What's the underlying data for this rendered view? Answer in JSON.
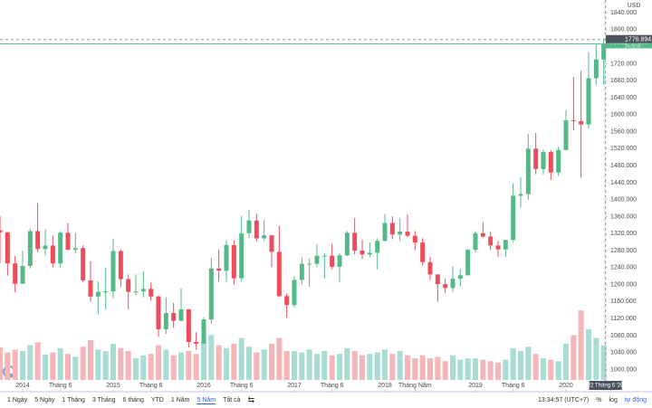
{
  "chart_data": {
    "type": "candlestick",
    "currency": "USD",
    "symbol": "XAUUSD",
    "up_color": "#53b987",
    "down_color": "#eb4d5c",
    "volume_up_color": "#a9dcd3",
    "volume_down_color": "#f5b5b9",
    "ylim": [
      950,
      1870
    ],
    "volume_lim": [
      0,
      100
    ],
    "yticks": [
      {
        "value": 1000,
        "label": "1000.000"
      },
      {
        "value": 1040,
        "label": "1040.000"
      },
      {
        "value": 1080,
        "label": "1080.000"
      },
      {
        "value": 1120,
        "label": "1120.000"
      },
      {
        "value": 1160,
        "label": "1160.000"
      },
      {
        "value": 1200,
        "label": "1200.000"
      },
      {
        "value": 1240,
        "label": "1240.000"
      },
      {
        "value": 1280,
        "label": "1280.000"
      },
      {
        "value": 1320,
        "label": "1320.000"
      },
      {
        "value": 1360,
        "label": "1360.000"
      },
      {
        "value": 1400,
        "label": "1400.000"
      },
      {
        "value": 1440,
        "label": "1440.000"
      },
      {
        "value": 1480,
        "label": "1480.000"
      },
      {
        "value": 1520,
        "label": "1520.000"
      },
      {
        "value": 1560,
        "label": "1560.000"
      },
      {
        "value": 1600,
        "label": "1600.000"
      },
      {
        "value": 1640,
        "label": "1640.000"
      },
      {
        "value": 1680,
        "label": "1680.000"
      },
      {
        "value": 1720,
        "label": "1720.000"
      },
      {
        "value": 1760,
        "label": "1760.000"
      },
      {
        "value": 1800,
        "label": "1800.000"
      },
      {
        "value": 1840,
        "label": "1840.000"
      }
    ],
    "xticks": [
      {
        "value": "2014-01",
        "label": "2014"
      },
      {
        "value": "2014-06",
        "label": "Tháng 6"
      },
      {
        "value": "2015-01",
        "label": "2015"
      },
      {
        "value": "2015-06",
        "label": "Tháng 6"
      },
      {
        "value": "2016-01",
        "label": "2016"
      },
      {
        "value": "2016-06",
        "label": "Tháng 6"
      },
      {
        "value": "2017-01",
        "label": "2017"
      },
      {
        "value": "2017-06",
        "label": "Tháng 6"
      },
      {
        "value": "2018-01",
        "label": "2018"
      },
      {
        "value": "2018-05",
        "label": "Tháng Năm"
      },
      {
        "value": "2019-01",
        "label": "2019"
      },
      {
        "value": "2019-06",
        "label": "Tháng 6"
      },
      {
        "value": "2020-01",
        "label": "2020"
      }
    ],
    "x": [
      "2013-10",
      "2013-11",
      "2013-12",
      "2014-01",
      "2014-02",
      "2014-03",
      "2014-04",
      "2014-05",
      "2014-06",
      "2014-07",
      "2014-08",
      "2014-09",
      "2014-10",
      "2014-11",
      "2014-12",
      "2015-01",
      "2015-02",
      "2015-03",
      "2015-04",
      "2015-05",
      "2015-06",
      "2015-07",
      "2015-08",
      "2015-09",
      "2015-10",
      "2015-11",
      "2015-12",
      "2016-01",
      "2016-02",
      "2016-03",
      "2016-04",
      "2016-05",
      "2016-06",
      "2016-07",
      "2016-08",
      "2016-09",
      "2016-10",
      "2016-11",
      "2016-12",
      "2017-01",
      "2017-02",
      "2017-03",
      "2017-04",
      "2017-05",
      "2017-06",
      "2017-07",
      "2017-08",
      "2017-09",
      "2017-10",
      "2017-11",
      "2017-12",
      "2018-01",
      "2018-02",
      "2018-03",
      "2018-04",
      "2018-05",
      "2018-06",
      "2018-07",
      "2018-08",
      "2018-09",
      "2018-10",
      "2018-11",
      "2018-12",
      "2019-01",
      "2019-02",
      "2019-03",
      "2019-04",
      "2019-05",
      "2019-06",
      "2019-07",
      "2019-08",
      "2019-09",
      "2019-10",
      "2019-11",
      "2019-12",
      "2020-01",
      "2020-02",
      "2020-03",
      "2020-04",
      "2020-05",
      "2020-06"
    ],
    "open": [
      1328,
      1323,
      1250,
      1202,
      1244,
      1326,
      1284,
      1292,
      1250,
      1322,
      1282,
      1286,
      1210,
      1172,
      1183,
      1184,
      1279,
      1213,
      1183,
      1184,
      1190,
      1172,
      1095,
      1133,
      1115,
      1142,
      1065,
      1061,
      1118,
      1238,
      1233,
      1293,
      1215,
      1321,
      1351,
      1309,
      1316,
      1277,
      1173,
      1152,
      1211,
      1249,
      1249,
      1268,
      1268,
      1242,
      1269,
      1322,
      1280,
      1271,
      1275,
      1303,
      1345,
      1318,
      1325,
      1315,
      1299,
      1253,
      1224,
      1201,
      1192,
      1214,
      1222,
      1282,
      1321,
      1313,
      1292,
      1283,
      1305,
      1409,
      1413,
      1520,
      1472,
      1512,
      1464,
      1517,
      1587,
      1585,
      1577,
      1686,
      1730
    ],
    "high": [
      1361,
      1324,
      1267,
      1280,
      1332,
      1392,
      1331,
      1315,
      1326,
      1345,
      1322,
      1293,
      1255,
      1208,
      1239,
      1307,
      1283,
      1224,
      1224,
      1232,
      1205,
      1174,
      1170,
      1157,
      1191,
      1142,
      1088,
      1123,
      1263,
      1283,
      1304,
      1304,
      1362,
      1375,
      1367,
      1352,
      1317,
      1338,
      1180,
      1220,
      1264,
      1262,
      1296,
      1274,
      1296,
      1274,
      1326,
      1357,
      1306,
      1299,
      1309,
      1366,
      1361,
      1356,
      1365,
      1326,
      1309,
      1266,
      1224,
      1214,
      1243,
      1237,
      1284,
      1326,
      1347,
      1324,
      1303,
      1306,
      1439,
      1453,
      1555,
      1557,
      1517,
      1516,
      1525,
      1611,
      1689,
      1703,
      1747,
      1765,
      1779
    ],
    "low": [
      1251,
      1221,
      1182,
      1202,
      1238,
      1277,
      1268,
      1240,
      1240,
      1281,
      1273,
      1206,
      1160,
      1131,
      1142,
      1168,
      1194,
      1142,
      1175,
      1170,
      1162,
      1077,
      1084,
      1098,
      1113,
      1052,
      1046,
      1062,
      1107,
      1208,
      1206,
      1200,
      1208,
      1310,
      1301,
      1302,
      1241,
      1171,
      1122,
      1146,
      1200,
      1195,
      1241,
      1214,
      1236,
      1205,
      1267,
      1271,
      1260,
      1264,
      1236,
      1302,
      1307,
      1303,
      1311,
      1281,
      1245,
      1211,
      1160,
      1180,
      1183,
      1196,
      1221,
      1276,
      1311,
      1281,
      1266,
      1266,
      1300,
      1381,
      1400,
      1460,
      1459,
      1446,
      1456,
      1517,
      1563,
      1451,
      1567,
      1670,
      1671
    ],
    "close": [
      1323,
      1250,
      1202,
      1244,
      1326,
      1284,
      1292,
      1250,
      1322,
      1282,
      1286,
      1210,
      1172,
      1183,
      1184,
      1279,
      1213,
      1183,
      1184,
      1190,
      1172,
      1095,
      1133,
      1115,
      1142,
      1065,
      1061,
      1118,
      1238,
      1233,
      1293,
      1215,
      1321,
      1351,
      1309,
      1316,
      1277,
      1173,
      1152,
      1211,
      1249,
      1249,
      1268,
      1268,
      1242,
      1269,
      1322,
      1280,
      1271,
      1275,
      1303,
      1345,
      1318,
      1325,
      1315,
      1299,
      1253,
      1224,
      1201,
      1192,
      1214,
      1222,
      1282,
      1321,
      1313,
      1292,
      1283,
      1305,
      1409,
      1413,
      1520,
      1472,
      1512,
      1464,
      1517,
      1587,
      1585,
      1577,
      1686,
      1730,
      1766
    ],
    "volume": [
      45,
      38,
      42,
      40,
      48,
      52,
      35,
      38,
      44,
      36,
      32,
      46,
      55,
      42,
      40,
      50,
      44,
      40,
      30,
      34,
      36,
      48,
      42,
      34,
      38,
      40,
      36,
      52,
      62,
      48,
      44,
      50,
      58,
      46,
      38,
      42,
      50,
      58,
      40,
      40,
      38,
      42,
      36,
      40,
      34,
      36,
      44,
      40,
      34,
      36,
      38,
      42,
      36,
      40,
      34,
      30,
      34,
      30,
      32,
      26,
      34,
      28,
      30,
      30,
      28,
      26,
      24,
      28,
      44,
      40,
      46,
      36,
      30,
      28,
      26,
      50,
      62,
      96,
      70,
      58,
      48
    ],
    "crosshair": {
      "price": {
        "value": 1776.894,
        "label": "1776.894"
      },
      "date_label": "22 Tháng 6 '20"
    },
    "last_price": {
      "value": 1766.85,
      "label": "1766.850"
    },
    "countdown": "14:25:03"
  },
  "toolbar": {
    "ranges": [
      "1 Ngày",
      "5 Ngày",
      "1 Tháng",
      "3 Tháng",
      "6 tháng",
      "YTD",
      "1 Năm",
      "5 Năm",
      "Tất cả"
    ],
    "active_range": 7,
    "clock": "13:34:57 (UTC+7)",
    "percent": "%",
    "log": "log",
    "auto": "tự động"
  }
}
